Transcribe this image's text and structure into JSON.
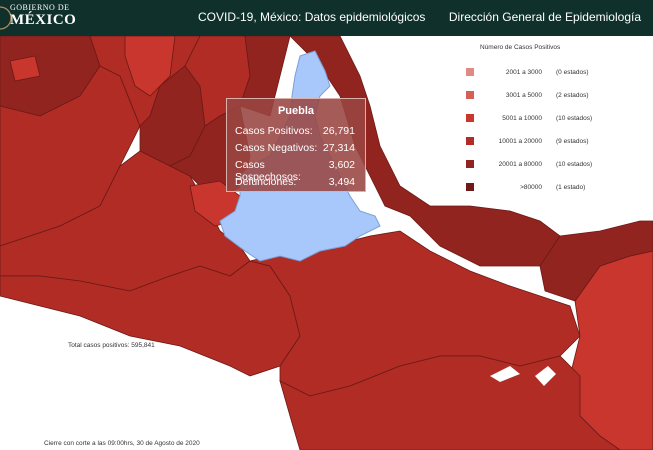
{
  "header": {
    "logo_line1": "GOBIERNO DE",
    "logo_line2": "MÉXICO",
    "title": "COVID-19, México: Datos epidemiológicos",
    "right": "Dirección General de Epidemiología"
  },
  "tooltip": {
    "title": "Puebla",
    "rows": [
      {
        "label": "Casos Positivos:",
        "value": "26,791"
      },
      {
        "label": "Casos Negativos:",
        "value": "27,314"
      },
      {
        "label": "Casos Sospechosos:",
        "value": "3,602"
      },
      {
        "label": "Defunciones:",
        "value": "3,494"
      }
    ]
  },
  "legend": {
    "title": "Número de Casos Positivos",
    "items": [
      {
        "range": "2001 a 3000",
        "count": "(0 estados)",
        "color": "#e08a84"
      },
      {
        "range": "3001 a 5000",
        "count": "(2 estados)",
        "color": "#d56057"
      },
      {
        "range": "5001 a 10000",
        "count": "(10 estados)",
        "color": "#c8362d"
      },
      {
        "range": "10001 a 20000",
        "count": "(9 estados)",
        "color": "#b02c25"
      },
      {
        "range": "20001 a 80000",
        "count": "(10 estados)",
        "color": "#92241f"
      },
      {
        "range": ">80000",
        "count": "(1 estado)",
        "color": "#6e1a18"
      }
    ]
  },
  "total": "Total casos positivos: 595,841",
  "footer": "Cierre con corte a las 09:00hrs, 30 de Agosto de 2020",
  "colors": {
    "header_bg": "#10312b",
    "selected_state": "#a8c8fb",
    "tone_5000_10000": "#c8362d",
    "tone_10000_20000": "#b02c25",
    "tone_20000_80000": "#92241f"
  }
}
